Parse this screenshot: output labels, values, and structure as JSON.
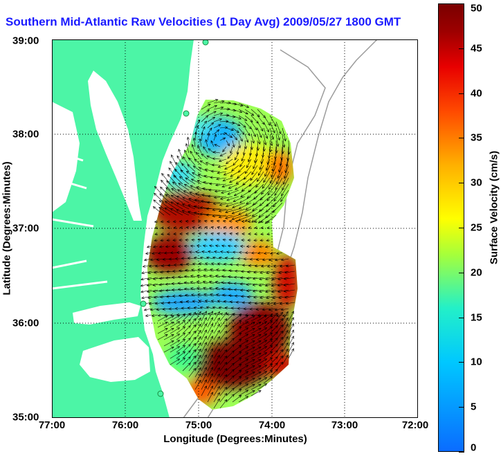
{
  "title": "Southern Mid-Atlantic Raw Velocities (1 Day Avg) 2009/05/27 1800 GMT",
  "xlabel": "Longitude (Degrees:Minutes)",
  "ylabel": "Latitude (Degrees:Minutes)",
  "x_ticks": [
    "77:00",
    "76:00",
    "75:00",
    "74:00",
    "73:00",
    "72:00"
  ],
  "y_ticks": [
    "39:00",
    "38:00",
    "37:00",
    "36:00",
    "35:00"
  ],
  "colorbar": {
    "label": "Surface Velocity (cm/s)",
    "ticks": [
      "50",
      "45",
      "40",
      "35",
      "30",
      "25",
      "20",
      "15",
      "10",
      "5",
      "0"
    ],
    "range": [
      0,
      50
    ]
  },
  "colors": {
    "land": "#4cf5a6",
    "water": "#ffffff",
    "title": "#1a1aff",
    "bathymetry": "#999999"
  }
}
